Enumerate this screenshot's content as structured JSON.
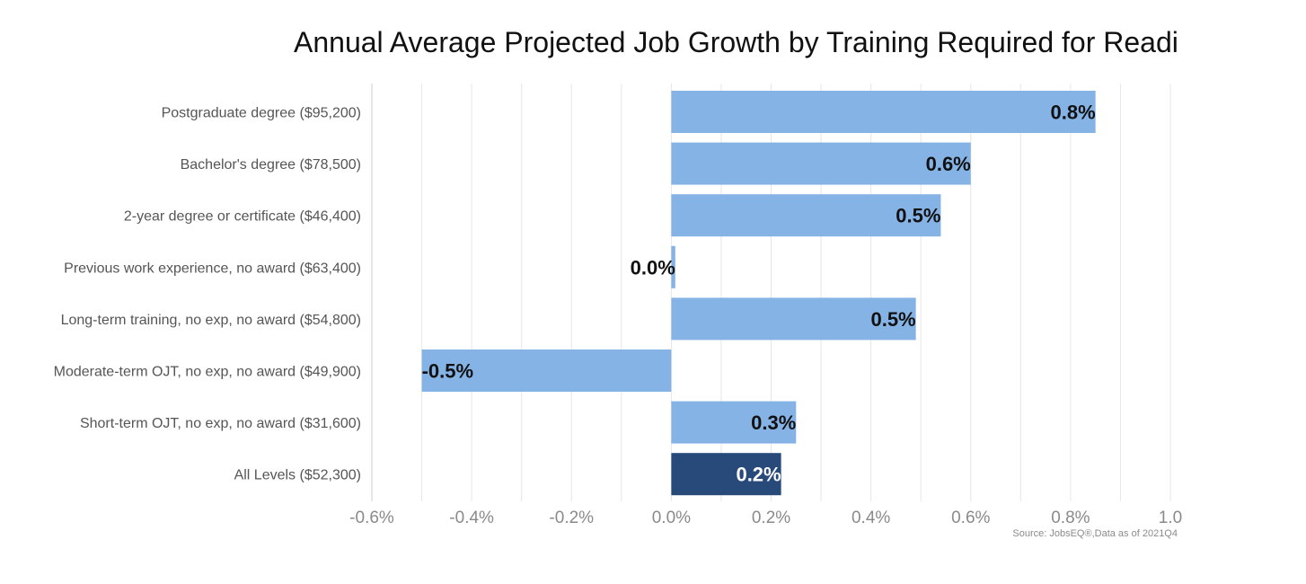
{
  "chart_data": {
    "type": "bar",
    "orientation": "horizontal",
    "title": "Annual Average Projected Job Growth by Training Required for Readin",
    "categories": [
      "Postgraduate degree ($95,200)",
      "Bachelor's degree ($78,500)",
      "2-year degree or certificate ($46,400)",
      "Previous work experience, no award ($63,400)",
      "Long-term training, no exp, no award ($54,800)",
      "Moderate-term OJT, no exp, no award ($49,900)",
      "Short-term OJT, no exp, no award ($31,600)",
      "All Levels ($52,300)"
    ],
    "values": [
      0.85,
      0.6,
      0.54,
      0.008,
      0.49,
      -0.5,
      0.25,
      0.22
    ],
    "data_labels": [
      "0.8%",
      "0.6%",
      "0.5%",
      "0.0%",
      "0.5%",
      "-0.5%",
      "0.3%",
      "0.2%"
    ],
    "highlight": [
      false,
      false,
      false,
      false,
      false,
      false,
      false,
      true
    ],
    "xlim": [
      -0.6,
      1.0
    ],
    "xticks": [
      -0.6,
      -0.4,
      -0.2,
      0.0,
      0.2,
      0.4,
      0.6,
      0.8,
      1.0
    ],
    "xtick_labels": [
      "-0.6%",
      "-0.4%",
      "-0.2%",
      "0.0%",
      "0.2%",
      "0.4%",
      "0.6%",
      "0.8%",
      "1.0"
    ],
    "minor_gridlines": true,
    "grid": true,
    "xlabel": "",
    "ylabel": "",
    "colors": {
      "bar": "#86b3e6",
      "highlight_bar": "#284a7b",
      "grid": "#e6e6e6",
      "axis": "#cccccc",
      "label_on_light": "#111111",
      "label_on_dark": "#ffffff"
    },
    "source": "Source: JobsEQ®,Data as of 2021Q4"
  }
}
